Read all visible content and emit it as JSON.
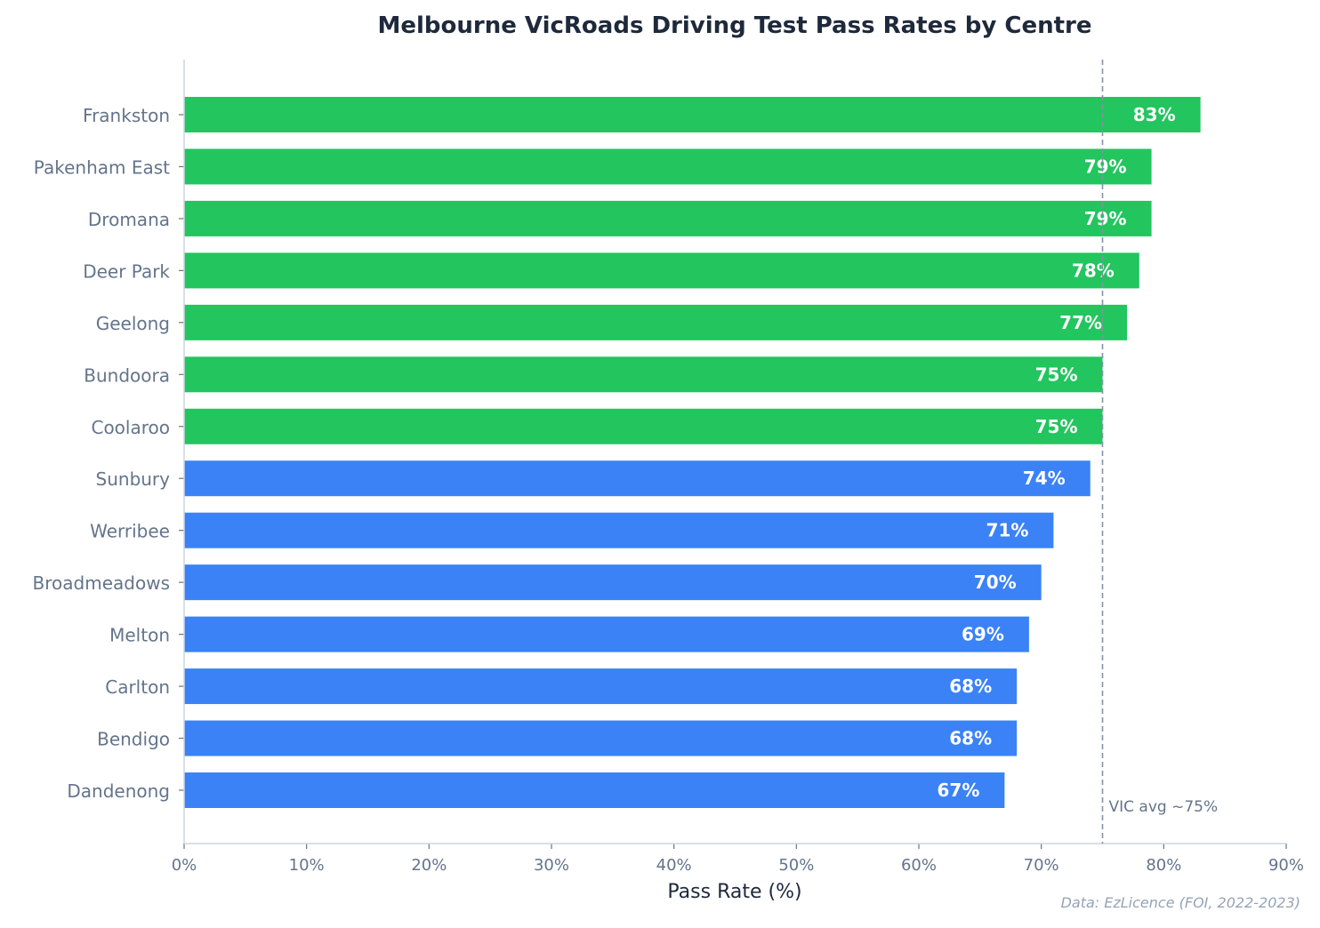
{
  "chart_data": {
    "type": "bar",
    "orientation": "horizontal",
    "title": "Melbourne VicRoads Driving Test Pass Rates by Centre",
    "xlabel": "Pass Rate (%)",
    "ylabel": "",
    "xlim": [
      0,
      90
    ],
    "x_ticks": [
      "0%",
      "10%",
      "20%",
      "30%",
      "40%",
      "50%",
      "60%",
      "70%",
      "80%",
      "90%"
    ],
    "categories": [
      "Frankston",
      "Pakenham East",
      "Dromana",
      "Deer Park",
      "Geelong",
      "Bundoora",
      "Coolaroo",
      "Sunbury",
      "Werribee",
      "Broadmeadows",
      "Melton",
      "Carlton",
      "Bendigo",
      "Dandenong"
    ],
    "values": [
      83,
      79,
      79,
      78,
      77,
      75,
      75,
      74,
      71,
      70,
      69,
      68,
      68,
      67
    ],
    "data_labels": [
      "83%",
      "79%",
      "79%",
      "78%",
      "77%",
      "75%",
      "75%",
      "74%",
      "71%",
      "70%",
      "69%",
      "68%",
      "68%",
      "67%"
    ],
    "colors": {
      "above_avg": "#22c55e",
      "below_avg": "#3b82f6"
    },
    "reference_line": {
      "value": 75,
      "label": "VIC avg ~75%",
      "style": "dashed",
      "color": "#8492a6"
    },
    "grid": false,
    "legend": "none",
    "source": "Data: EzLicence (FOI, 2022-2023)"
  }
}
